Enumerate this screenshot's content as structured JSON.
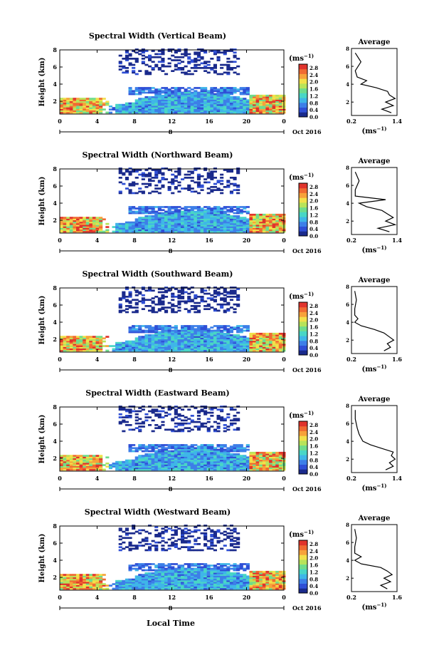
{
  "figure": {
    "bottom_xlabel": "Local Time",
    "colorbar_unit_base": "(ms",
    "colorbar_unit_exp": "−1)",
    "avg_title": "Average",
    "avg_unit_base": "(ms",
    "avg_unit_exp": "−1)",
    "date_label": "Oct 2016",
    "day_label": "8"
  },
  "chart_data": [
    {
      "type": "heatmap",
      "title": "Spectral Width (Vertical Beam)",
      "ylabel": "Height (km)",
      "x_ticks": [
        "0",
        "4",
        "8",
        "12",
        "16",
        "20",
        "0"
      ],
      "y_ticks": [
        "2",
        "4",
        "6",
        "8"
      ],
      "xlim": [
        0,
        24
      ],
      "ylim": [
        0.5,
        8
      ],
      "colorbar_ticks": [
        "2.8",
        "2.4",
        "2.0",
        "1.6",
        "1.2",
        "0.8",
        "0.4",
        "0.0"
      ],
      "colorbar_range": [
        0.0,
        3.0
      ],
      "profile": {
        "title": "Average",
        "xlabel": "(ms−1)",
        "x_ticks": [
          "0.2",
          "1.4"
        ],
        "xlim": [
          0.2,
          1.4
        ],
        "y_ticks": [
          "2",
          "4",
          "6",
          "8"
        ],
        "ylim": [
          0.5,
          8
        ],
        "height": [
          0.8,
          1.2,
          1.6,
          2.0,
          2.4,
          2.8,
          3.2,
          3.6,
          4.0,
          4.4,
          4.8,
          5.5,
          6.5,
          7.5
        ],
        "value": [
          1.25,
          1.0,
          1.3,
          1.1,
          1.35,
          1.2,
          1.15,
          0.85,
          0.45,
          0.6,
          0.35,
          0.3,
          0.45,
          0.3
        ]
      }
    },
    {
      "type": "heatmap",
      "title": "Spectral Width (Northward Beam)",
      "ylabel": "Height (km)",
      "x_ticks": [
        "0",
        "4",
        "8",
        "12",
        "16",
        "20",
        "0"
      ],
      "y_ticks": [
        "2",
        "4",
        "6",
        "8"
      ],
      "xlim": [
        0,
        24
      ],
      "ylim": [
        0.5,
        8
      ],
      "colorbar_ticks": [
        "2.8",
        "2.4",
        "2.0",
        "1.6",
        "1.2",
        "0.8",
        "0.4",
        "0.0"
      ],
      "colorbar_range": [
        0.0,
        3.0
      ],
      "profile": {
        "title": "Average",
        "xlabel": "(ms−1)",
        "x_ticks": [
          "0.2",
          "1.4"
        ],
        "xlim": [
          0.2,
          1.4
        ],
        "y_ticks": [
          "2",
          "4",
          "6",
          "8"
        ],
        "ylim": [
          0.5,
          8
        ],
        "height": [
          0.8,
          1.2,
          1.6,
          2.0,
          2.4,
          2.8,
          3.2,
          3.6,
          4.0,
          4.4,
          4.8,
          5.5,
          6.5,
          7.5
        ],
        "value": [
          1.2,
          0.9,
          1.35,
          1.1,
          1.3,
          1.15,
          1.0,
          0.6,
          0.4,
          1.1,
          0.3,
          0.3,
          0.4,
          0.3
        ]
      }
    },
    {
      "type": "heatmap",
      "title": "Spectral Width (Southward Beam)",
      "ylabel": "Height (km)",
      "x_ticks": [
        "0",
        "4",
        "8",
        "12",
        "16",
        "20",
        "0"
      ],
      "y_ticks": [
        "2",
        "4",
        "6",
        "8"
      ],
      "xlim": [
        0,
        24
      ],
      "ylim": [
        0.5,
        8
      ],
      "colorbar_ticks": [
        "2.8",
        "2.4",
        "2.0",
        "1.6",
        "1.2",
        "0.8",
        "0.4",
        "0.0"
      ],
      "colorbar_range": [
        0.0,
        3.0
      ],
      "profile": {
        "title": "Average",
        "xlabel": "(ms−1)",
        "x_ticks": [
          "0.2",
          "1.6"
        ],
        "xlim": [
          0.2,
          1.6
        ],
        "y_ticks": [
          "2",
          "4",
          "6",
          "8"
        ],
        "ylim": [
          0.5,
          8
        ],
        "height": [
          0.8,
          1.2,
          1.6,
          2.0,
          2.4,
          2.8,
          3.2,
          3.6,
          4.0,
          4.4,
          4.8,
          5.5,
          6.5,
          7.5
        ],
        "value": [
          1.2,
          1.4,
          1.3,
          1.5,
          1.35,
          1.2,
          0.9,
          0.5,
          0.3,
          0.4,
          0.3,
          0.3,
          0.35,
          0.3
        ]
      }
    },
    {
      "type": "heatmap",
      "title": "Spectral Width (Eastward Beam)",
      "ylabel": "Height (km)",
      "x_ticks": [
        "0",
        "4",
        "8",
        "12",
        "16",
        "20",
        "0"
      ],
      "y_ticks": [
        "2",
        "4",
        "6",
        "8"
      ],
      "xlim": [
        0,
        24
      ],
      "ylim": [
        0.5,
        8
      ],
      "colorbar_ticks": [
        "2.8",
        "2.4",
        "2.0",
        "1.6",
        "1.2",
        "0.8",
        "0.4",
        "0.0"
      ],
      "colorbar_range": [
        0.0,
        3.0
      ],
      "profile": {
        "title": "Average",
        "xlabel": "(ms−1)",
        "x_ticks": [
          "0.2",
          "1.4"
        ],
        "xlim": [
          0.2,
          1.4
        ],
        "y_ticks": [
          "2",
          "4",
          "6",
          "8"
        ],
        "ylim": [
          0.5,
          8
        ],
        "height": [
          0.8,
          1.2,
          1.6,
          2.0,
          2.4,
          2.8,
          3.2,
          3.6,
          4.0,
          4.4,
          4.8,
          5.5,
          6.5,
          7.5
        ],
        "value": [
          1.1,
          1.3,
          1.2,
          1.35,
          1.25,
          1.3,
          1.0,
          0.7,
          0.5,
          0.45,
          0.4,
          0.35,
          0.3,
          0.3
        ]
      }
    },
    {
      "type": "heatmap",
      "title": "Spectral Width (Westward Beam)",
      "ylabel": "Height (km)",
      "x_ticks": [
        "0",
        "4",
        "8",
        "12",
        "16",
        "20",
        "0"
      ],
      "y_ticks": [
        "2",
        "4",
        "6",
        "8"
      ],
      "xlim": [
        0,
        24
      ],
      "ylim": [
        0.5,
        8
      ],
      "colorbar_ticks": [
        "2.8",
        "2.4",
        "2.0",
        "1.6",
        "1.2",
        "0.8",
        "0.4",
        "0.0"
      ],
      "colorbar_range": [
        0.0,
        3.0
      ],
      "profile": {
        "title": "Average",
        "xlabel": "(ms−1)",
        "x_ticks": [
          "0.2",
          "1.6"
        ],
        "xlim": [
          0.2,
          1.6
        ],
        "y_ticks": [
          "2",
          "4",
          "6",
          "8"
        ],
        "ylim": [
          0.5,
          8
        ],
        "height": [
          0.8,
          1.2,
          1.6,
          2.0,
          2.4,
          2.8,
          3.2,
          3.6,
          4.0,
          4.4,
          4.8,
          5.5,
          6.5,
          7.5
        ],
        "value": [
          1.3,
          1.1,
          1.4,
          1.2,
          1.45,
          1.3,
          1.1,
          0.5,
          0.3,
          0.5,
          0.3,
          0.3,
          0.35,
          0.3
        ]
      }
    }
  ]
}
